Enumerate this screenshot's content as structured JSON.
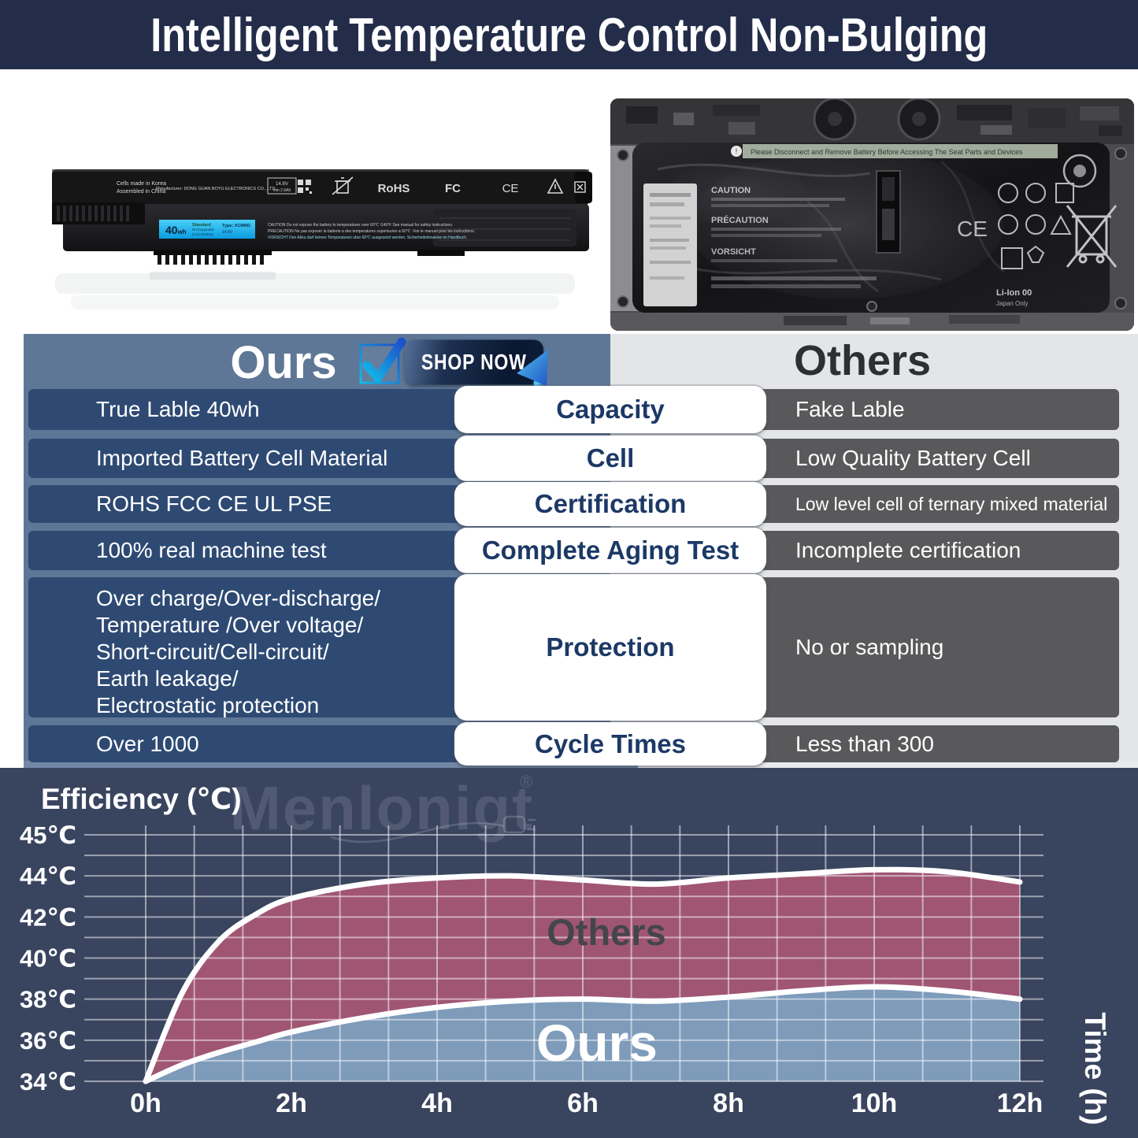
{
  "title": "Intelligent Temperature Control Non-Bulging",
  "colors": {
    "title_bg": "#232C49",
    "ours_slab": "#5E7797",
    "ours_row": "#2E4A73",
    "others_slab": "#E4E5E7",
    "others_row": "#59595B",
    "pill_text": "#1C3966",
    "chart_bg": "#39445F",
    "others_area": "#A05672",
    "ours_area": "#7E9BBA",
    "shop_btn": "#0A1730",
    "accent_blue": "#2F9BE8"
  },
  "battery": {
    "made1": "Cells made in Korea",
    "made2": "Assembled in China",
    "manufacturer": "Manufacturer: DONG GUAN BOYU ELECTRONICS CO., LTD.",
    "box1": "14.8V",
    "box2": "min 2.6Ah",
    "rohs": "RoHS",
    "fcc": "FC",
    "ce": "CE",
    "wh": "40",
    "wh_unit": "wh",
    "standard": "Standard",
    "recharge": "Rechargeable",
    "liion": "Li-ion Battery",
    "type": "Type: XCMRD",
    "volt": "14.8V",
    "caution1": "CAUTION Do not expose the battery to temperatures over 60℃ /140℉ See manual for safety instructions.",
    "caution2": "PRECAUTION Ne pas exposer la batterie a des temperatures superieures a 60℃. Voir le manuel pour les instructions.",
    "caution3": "VORSICHT Den Akku darf keinen Temperaturen uber 60℃ ausgesetzt werden. Sicherheitshinweise im Handbuch."
  },
  "photo": {
    "banner": "Please Disconnect and Remove Battery Before Accessing The Seat Parts and Devices",
    "caution": "CAUTION",
    "precaution": "PRÉCAUTION",
    "vorsicht": "VORSICHT",
    "ce": "CE",
    "liion": "Li-Ion 00",
    "japan": "Japan Only"
  },
  "comparison": {
    "ours_header": "Ours",
    "others_header": "Others",
    "shop_now": "SHOP NOW",
    "rows": [
      {
        "left": "True Lable  40wh",
        "center": "Capacity",
        "right": "Fake Lable"
      },
      {
        "left": "Imported Battery Cell Material",
        "center": "Cell",
        "right": "Low Quality Battery Cell"
      },
      {
        "left": "ROHS FCC CE UL PSE",
        "center": "Certification",
        "right": "Low level cell of ternary mixed material"
      },
      {
        "left": "100% real machine test",
        "center": "Complete Aging Test",
        "right": "Incomplete certification"
      },
      {
        "left_lines": [
          "Over charge/Over-discharge/",
          "Temperature /Over voltage/",
          "Short-circuit/Cell-circuit/",
          "Earth leakage/",
          "Electrostatic protection"
        ],
        "center": "Protection",
        "right": "No or sampling"
      },
      {
        "left": "Over 1000",
        "center": "Cycle Times",
        "right": "Less than 300"
      }
    ]
  },
  "chart": {
    "efficiency_label": "Efficiency (℃)",
    "time_label": "Time (h)",
    "watermark": "Menlonigt",
    "watermark_r": "®",
    "others_label": "Others",
    "ours_label": "Ours",
    "y_ticks": [
      "45℃",
      "44℃",
      "42℃",
      "40℃",
      "38℃",
      "36℃",
      "34℃"
    ],
    "x_ticks": [
      "0h",
      "2h",
      "4h",
      "6h",
      "8h",
      "10h",
      "12h"
    ]
  },
  "chart_data": {
    "type": "area",
    "title": "",
    "xlabel": "Time (h)",
    "ylabel": "Efficiency (℃)",
    "xlim": [
      0,
      12
    ],
    "ylim": [
      34,
      45
    ],
    "grid": true,
    "x": [
      0,
      0.5,
      1,
      1.5,
      2,
      3,
      4,
      5,
      6,
      7,
      8,
      9,
      10,
      11,
      12
    ],
    "series": [
      {
        "name": "Others",
        "color": "#A05672",
        "values": [
          34,
          38.3,
          40.8,
          42.1,
          42.9,
          43.6,
          43.9,
          44.0,
          43.8,
          43.6,
          43.9,
          44.1,
          44.3,
          44.2,
          43.7
        ]
      },
      {
        "name": "Ours",
        "color": "#7E9BBA",
        "values": [
          34,
          34.8,
          35.4,
          35.9,
          36.4,
          37.1,
          37.6,
          37.9,
          38.0,
          37.9,
          38.1,
          38.4,
          38.6,
          38.4,
          38.0
        ]
      }
    ]
  }
}
